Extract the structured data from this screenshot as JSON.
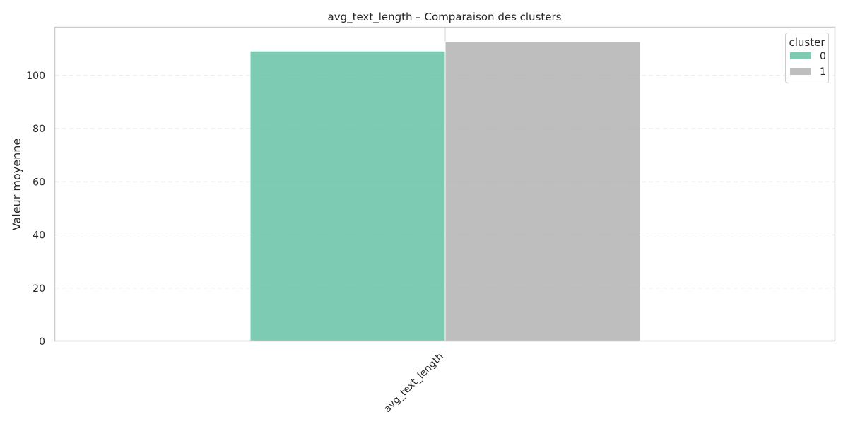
{
  "chart_data": {
    "type": "bar",
    "title": "avg_text_length – Comparaison des clusters",
    "xlabel": "",
    "ylabel": "Valeur moyenne",
    "categories": [
      "avg_text_length"
    ],
    "series": [
      {
        "name": "0",
        "values": [
          109.2
        ],
        "color": "#66c2a5"
      },
      {
        "name": "1",
        "values": [
          112.7
        ],
        "color": "#b3b3b3"
      }
    ],
    "ylim": [
      0,
      118.3
    ],
    "yticks": [
      0,
      20,
      40,
      60,
      80,
      100
    ],
    "grid": "y-dashed",
    "legend": {
      "title": "cluster",
      "position": "top-right"
    }
  }
}
